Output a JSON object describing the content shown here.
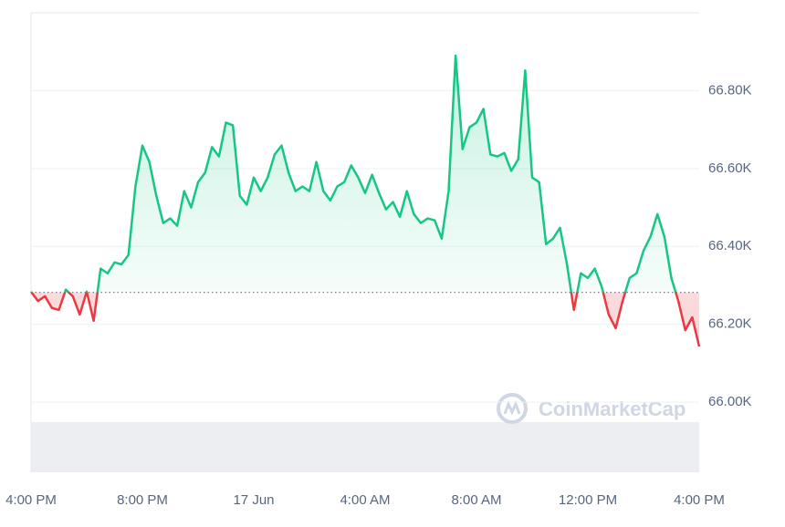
{
  "chart_data": {
    "type": "line",
    "watermark": "CoinMarketCap",
    "categories": [
      "4:00 PM",
      null,
      null,
      null,
      null,
      null,
      null,
      null,
      null,
      null,
      null,
      null,
      null,
      null,
      null,
      null,
      "8:00 PM",
      null,
      null,
      null,
      null,
      null,
      null,
      null,
      null,
      null,
      null,
      null,
      null,
      null,
      null,
      null,
      "17 Jun",
      null,
      null,
      null,
      null,
      null,
      null,
      null,
      null,
      null,
      null,
      null,
      null,
      null,
      null,
      null,
      "4:00 AM",
      null,
      null,
      null,
      null,
      null,
      null,
      null,
      null,
      null,
      null,
      null,
      null,
      null,
      null,
      null,
      "8:00 AM",
      null,
      null,
      null,
      null,
      null,
      null,
      null,
      null,
      null,
      null,
      null,
      null,
      null,
      null,
      null,
      "12:00 PM",
      null,
      null,
      null,
      null,
      null,
      null,
      null,
      null,
      null,
      null,
      null,
      null,
      null,
      null,
      null,
      "4:00 PM"
    ],
    "values": [
      66284,
      66260,
      66272,
      66242,
      66237,
      66289,
      66272,
      66225,
      66284,
      66209,
      66343,
      66331,
      66359,
      66354,
      66378,
      66554,
      66659,
      66617,
      66530,
      66460,
      66472,
      66453,
      66542,
      66500,
      66565,
      66589,
      66655,
      66631,
      66718,
      66711,
      66530,
      66507,
      66577,
      66542,
      66577,
      66636,
      66659,
      66589,
      66542,
      66554,
      66542,
      66617,
      66542,
      66518,
      66554,
      66565,
      66608,
      66577,
      66537,
      66584,
      66537,
      66495,
      66514,
      66476,
      66542,
      66483,
      66460,
      66472,
      66467,
      66420,
      66542,
      66890,
      66650,
      66706,
      66718,
      66753,
      66636,
      66631,
      66640,
      66594,
      66624,
      66852,
      66577,
      66565,
      66406,
      66420,
      66448,
      66354,
      66237,
      66331,
      66319,
      66343,
      66296,
      66225,
      66190,
      66260,
      66319,
      66331,
      66389,
      66425,
      66483,
      66425,
      66319,
      66260,
      66185,
      66218,
      66143
    ],
    "baseline": 66282,
    "up_color": "#16c784",
    "down_color": "#ea3943",
    "ylim": [
      65820,
      67000
    ],
    "yticks": [
      {
        "value": 66000,
        "label": "66.00K"
      },
      {
        "value": 66200,
        "label": "66.20K"
      },
      {
        "value": 66400,
        "label": "66.40K"
      },
      {
        "value": 66600,
        "label": "66.60K"
      },
      {
        "value": 66800,
        "label": "66.80K"
      }
    ],
    "grid": true
  }
}
